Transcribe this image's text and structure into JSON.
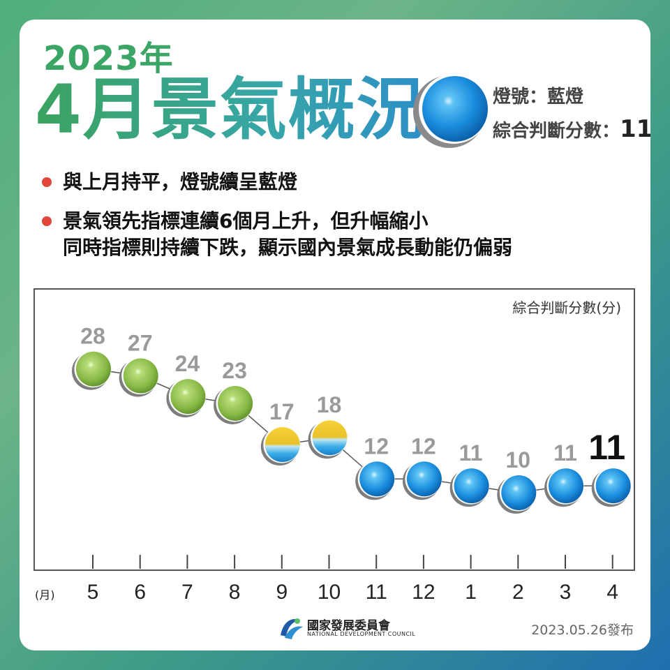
{
  "header": {
    "year": "2023年",
    "headline": "4月景氣概況",
    "signal_label": "燈號：藍燈",
    "score_label": "綜合判斷分數：",
    "score_value": "11"
  },
  "bullets": [
    "與上月持平，燈號續呈藍燈",
    "景氣領先指標連續6個月上升，但升幅縮小",
    "同時指標則持續下跌，顯示國內景氣成長動能仍偏弱"
  ],
  "colors": {
    "green": "#8fbf4a",
    "blue": "#1e8fdb",
    "yellow_blue": "#f0c020"
  },
  "chart_data": {
    "type": "scatter",
    "ylabel": "綜合判斷分數(分)",
    "xlabel": "(月)",
    "categories": [
      "5",
      "6",
      "7",
      "8",
      "9",
      "10",
      "11",
      "12",
      "1",
      "2",
      "3",
      "4"
    ],
    "values": [
      28,
      27,
      24,
      23,
      17,
      18,
      12,
      12,
      11,
      10,
      11,
      11
    ],
    "signals": [
      "green",
      "green",
      "green",
      "green",
      "yellow-blue",
      "yellow-blue",
      "blue",
      "blue",
      "blue",
      "blue",
      "blue",
      "blue"
    ],
    "highlight_last": true
  },
  "footer": {
    "org_zh": "國家發展委員會",
    "org_en": "NATIONAL DEVELOPMENT COUNCIL",
    "release": "2023.05.26發布"
  }
}
